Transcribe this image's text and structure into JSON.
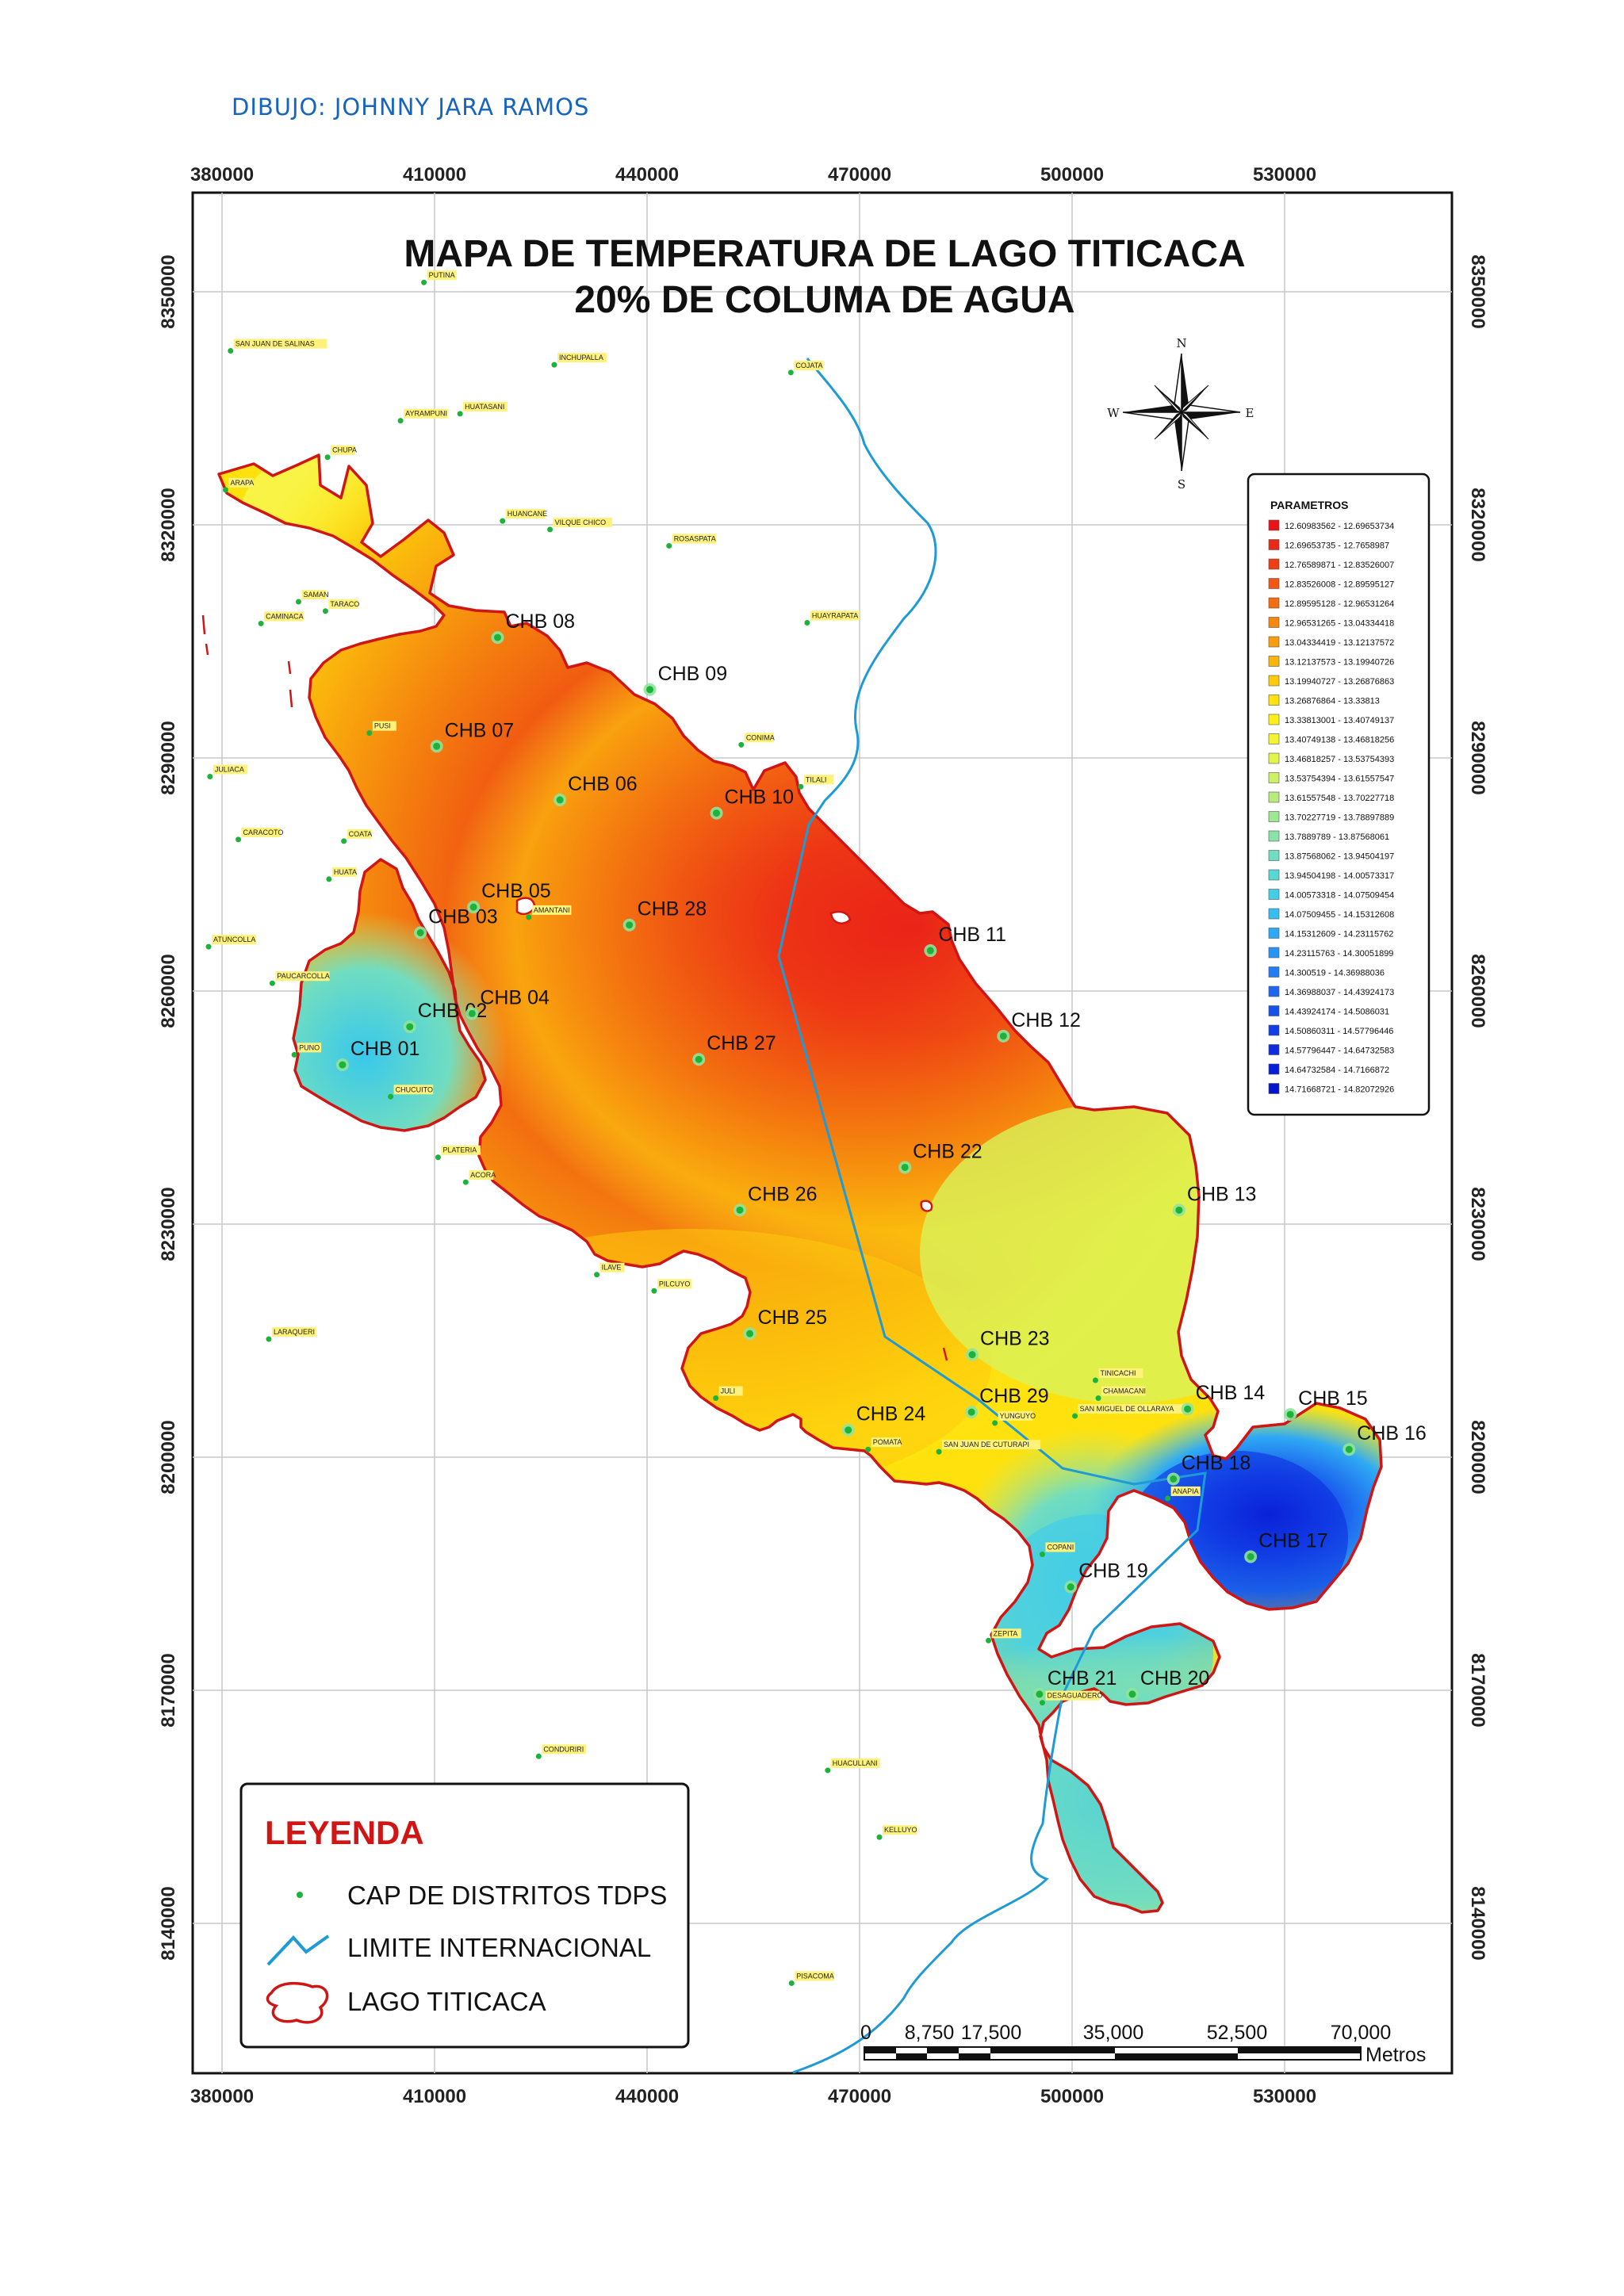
{
  "credit": "DIBUJO: JOHNNY JARA RAMOS",
  "title_line1": "MAPA DE TEMPERATURA DE LAGO TITICACA",
  "title_line2": "20% DE COLUMA DE AGUA",
  "x_ticks": [
    "380000",
    "410000",
    "440000",
    "470000",
    "500000",
    "530000"
  ],
  "y_ticks": [
    "8350000",
    "8320000",
    "8290000",
    "8260000",
    "8230000",
    "8200000",
    "8170000",
    "8140000"
  ],
  "compass": {
    "n": "N",
    "s": "S",
    "e": "E",
    "w": "W"
  },
  "parametros": {
    "title": "PARAMETROS",
    "classes": [
      {
        "range": "12.60983562 - 12.69653734",
        "color": "#e8141a"
      },
      {
        "range": "12.69653735 - 12.7658987",
        "color": "#ea2a17"
      },
      {
        "range": "12.76589871 - 12.83526007",
        "color": "#ec4014"
      },
      {
        "range": "12.83526008 - 12.89595127",
        "color": "#ef5712"
      },
      {
        "range": "12.89595128 - 12.96531264",
        "color": "#f26e10"
      },
      {
        "range": "12.96531265 - 13.04334418",
        "color": "#f5860e"
      },
      {
        "range": "13.04334419 - 13.12137572",
        "color": "#f89d0d"
      },
      {
        "range": "13.12137573 - 13.19940726",
        "color": "#fbb40c"
      },
      {
        "range": "13.19940727 - 13.26876863",
        "color": "#fdcb0c"
      },
      {
        "range": "13.26876864 - 13.33813",
        "color": "#ffe10e"
      },
      {
        "range": "13.33813001 - 13.40749137",
        "color": "#fff01a"
      },
      {
        "range": "13.40749138 - 13.46818256",
        "color": "#f4f532"
      },
      {
        "range": "13.46818257 - 13.53754393",
        "color": "#e2f44b"
      },
      {
        "range": "13.53754394 - 13.61557547",
        "color": "#cdf064"
      },
      {
        "range": "13.61557548 - 13.70227718",
        "color": "#b7ec7d"
      },
      {
        "range": "13.70227719 - 13.78897889",
        "color": "#a0e794"
      },
      {
        "range": "13.7889789 - 13.87568061",
        "color": "#89e2aa"
      },
      {
        "range": "13.87568062 - 13.94504197",
        "color": "#71ddc0"
      },
      {
        "range": "13.94504198 - 14.00573317",
        "color": "#5ad6d4"
      },
      {
        "range": "14.00573318 - 14.07509454",
        "color": "#45cde6"
      },
      {
        "range": "14.07509455 - 14.15312608",
        "color": "#38bdf0"
      },
      {
        "range": "14.15312609 - 14.23115762",
        "color": "#2fa9f4"
      },
      {
        "range": "14.23115763 - 14.30051899",
        "color": "#2893f5"
      },
      {
        "range": "14.300519 - 14.36988036",
        "color": "#227cf4"
      },
      {
        "range": "14.36988037 - 14.43924173",
        "color": "#1c66f1"
      },
      {
        "range": "14.43924174 - 14.5086031",
        "color": "#1751ec"
      },
      {
        "range": "14.50860311 - 14.57796446",
        "color": "#123ee6"
      },
      {
        "range": "14.57796447 - 14.64732583",
        "color": "#0d2ddf"
      },
      {
        "range": "14.64732584 - 14.7166872",
        "color": "#091ed7"
      },
      {
        "range": "14.71668721 - 14.82072926",
        "color": "#0612cc"
      }
    ]
  },
  "stations": [
    {
      "id": "CHB 01",
      "x": 397,
      "y": 8250.5
    },
    {
      "id": "CHB 02",
      "x": 406.5,
      "y": 8255.4
    },
    {
      "id": "CHB 03",
      "x": 408,
      "y": 8267.5
    },
    {
      "id": "CHB 04",
      "x": 415.3,
      "y": 8257.1
    },
    {
      "id": "CHB 05",
      "x": 415.5,
      "y": 8270.8
    },
    {
      "id": "CHB 06",
      "x": 427.7,
      "y": 8284.6
    },
    {
      "id": "CHB 07",
      "x": 410.3,
      "y": 8291.5
    },
    {
      "id": "CHB 08",
      "x": 418.9,
      "y": 8305.5
    },
    {
      "id": "CHB 09",
      "x": 440.4,
      "y": 8298.8
    },
    {
      "id": "CHB 10",
      "x": 449.8,
      "y": 8282.9
    },
    {
      "id": "CHB 11",
      "x": 480,
      "y": 8265.2
    },
    {
      "id": "CHB 12",
      "x": 490.3,
      "y": 8254.2
    },
    {
      "id": "CHB 13",
      "x": 515.1,
      "y": 8231.8
    },
    {
      "id": "CHB 14",
      "x": 516.3,
      "y": 8206.2
    },
    {
      "id": "CHB 15",
      "x": 530.8,
      "y": 8205.5
    },
    {
      "id": "CHB 16",
      "x": 539.1,
      "y": 8201
    },
    {
      "id": "CHB 17",
      "x": 525.2,
      "y": 8187.2
    },
    {
      "id": "CHB 18",
      "x": 514.3,
      "y": 8197.2
    },
    {
      "id": "CHB 19",
      "x": 499.8,
      "y": 8183.3
    },
    {
      "id": "CHB 20",
      "x": 508.5,
      "y": 8169.5
    },
    {
      "id": "CHB 21",
      "x": 495.4,
      "y": 8169.5
    },
    {
      "id": "CHB 22",
      "x": 476.4,
      "y": 8237.3
    },
    {
      "id": "CHB 23",
      "x": 485.9,
      "y": 8213.2
    },
    {
      "id": "CHB 24",
      "x": 468.4,
      "y": 8203.5
    },
    {
      "id": "CHB 25",
      "x": 454.5,
      "y": 8215.9
    },
    {
      "id": "CHB 26",
      "x": 453.1,
      "y": 8231.8
    },
    {
      "id": "CHB 27",
      "x": 447.3,
      "y": 8251.2
    },
    {
      "id": "CHB 28",
      "x": 437.5,
      "y": 8268.5
    },
    {
      "id": "CHB 29",
      "x": 485.8,
      "y": 8205.8
    }
  ],
  "towns": [
    {
      "name": "SAN JUAN DE SALINAS",
      "x": 381.2,
      "y": 8342.4
    },
    {
      "name": "INCHUPALLA",
      "x": 426.9,
      "y": 8340.6
    },
    {
      "name": "COJATA",
      "x": 460.3,
      "y": 8339.6
    },
    {
      "name": "AYRAMPUNI",
      "x": 405.2,
      "y": 8333.4
    },
    {
      "name": "HUATASANI",
      "x": 413.6,
      "y": 8334.3
    },
    {
      "name": "CHUPA",
      "x": 394.9,
      "y": 8328.7
    },
    {
      "name": "ARAPA",
      "x": 380.5,
      "y": 8324.5
    },
    {
      "name": "HUANCANE",
      "x": 419.6,
      "y": 8320.5
    },
    {
      "name": "VILQUE CHICO",
      "x": 426.3,
      "y": 8319.4
    },
    {
      "name": "ROSASPATA",
      "x": 443.1,
      "y": 8317.3
    },
    {
      "name": "SAMAN",
      "x": 390.8,
      "y": 8310.1
    },
    {
      "name": "TARACO",
      "x": 394.6,
      "y": 8308.9
    },
    {
      "name": "CAMINACA",
      "x": 385.5,
      "y": 8307.3
    },
    {
      "name": "HUAYRAPATA",
      "x": 462.6,
      "y": 8307.4
    },
    {
      "name": "PUSI",
      "x": 400.8,
      "y": 8293.2
    },
    {
      "name": "CONIMA",
      "x": 453.3,
      "y": 8291.7
    },
    {
      "name": "TILALI",
      "x": 461.7,
      "y": 8286.3
    },
    {
      "name": "JULIACA",
      "x": 378.3,
      "y": 8287.6
    },
    {
      "name": "CARACOTO",
      "x": 382.3,
      "y": 8279.5
    },
    {
      "name": "COATA",
      "x": 397.2,
      "y": 8279.3
    },
    {
      "name": "HUATA",
      "x": 395.1,
      "y": 8274.4
    },
    {
      "name": "AMANTANI",
      "x": 423.3,
      "y": 8269.5
    },
    {
      "name": "ATUNCOLLA",
      "x": 378.1,
      "y": 8265.7
    },
    {
      "name": "PAUCARCOLLA",
      "x": 387.1,
      "y": 8261.0
    },
    {
      "name": "PUNO",
      "x": 390.2,
      "y": 8251.8
    },
    {
      "name": "CHUCUITO",
      "x": 403.8,
      "y": 8246.4
    },
    {
      "name": "PLATERIA",
      "x": 410.5,
      "y": 8238.6
    },
    {
      "name": "ACORA",
      "x": 414.4,
      "y": 8235.4
    },
    {
      "name": "ILAVE",
      "x": 432.9,
      "y": 8223.5
    },
    {
      "name": "PILCUYO",
      "x": 441.0,
      "y": 8221.4
    },
    {
      "name": "LARAQUERI",
      "x": 386.6,
      "y": 8215.2
    },
    {
      "name": "JULI",
      "x": 449.7,
      "y": 8207.6
    },
    {
      "name": "TINICACHI",
      "x": 503.3,
      "y": 8209.9
    },
    {
      "name": "YUNGUYO",
      "x": 489.1,
      "y": 8204.4
    },
    {
      "name": "CHAMACANI",
      "x": 503.7,
      "y": 8207.6
    },
    {
      "name": "SAN MIGUEL DE OLLARAYA",
      "x": 500.4,
      "y": 8205.3
    },
    {
      "name": "SAN JUAN DE CUTURAPI",
      "x": 481.2,
      "y": 8200.7
    },
    {
      "name": "POMATA",
      "x": 471.2,
      "y": 8201.0
    },
    {
      "name": "ANAPIA",
      "x": 513.5,
      "y": 8194.7
    },
    {
      "name": "COPANI",
      "x": 495.8,
      "y": 8187.5
    },
    {
      "name": "ZEPITA",
      "x": 488.2,
      "y": 8176.4
    },
    {
      "name": "DESAGUADERO",
      "x": 495.8,
      "y": 8168.4
    },
    {
      "name": "CONDURIRI",
      "x": 424.7,
      "y": 8161.5
    },
    {
      "name": "HUACULLANI",
      "x": 465.5,
      "y": 8159.7
    },
    {
      "name": "KELLUYO",
      "x": 472.8,
      "y": 8151.1
    },
    {
      "name": "PISACOMA",
      "x": 460.4,
      "y": 8132.3
    },
    {
      "name": "PUTINA",
      "x": 408.5,
      "y": 8351.2
    }
  ],
  "leyenda": {
    "title": "LEYENDA",
    "item1": "CAP DE DISTRITOS TDPS",
    "item2": "LIMITE INTERNACIONAL",
    "item3": "LAGO TITICACA"
  },
  "scale": {
    "labels": [
      "0",
      "8,750",
      "17,500",
      "35,000",
      "52,500",
      "70,000"
    ],
    "unit": "Metros"
  },
  "colors": {
    "lake_outline": "#d01515",
    "border": "#1e9ad6",
    "station_dot": "#1db33a",
    "hot": "#e8141a",
    "cold": "#0612cc"
  }
}
